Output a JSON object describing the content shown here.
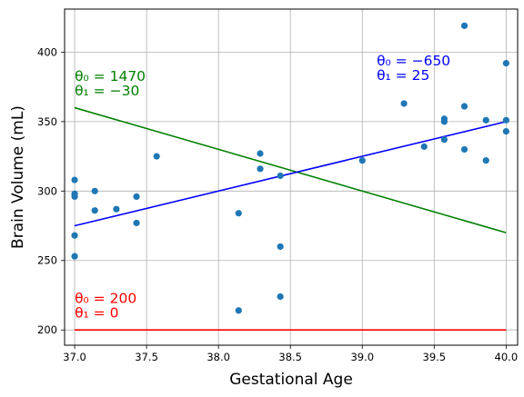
{
  "chart_data": {
    "type": "scatter",
    "xlabel": "Gestational Age",
    "ylabel": "Brain Volume (mL)",
    "xlim": [
      36.93,
      40.08
    ],
    "ylim": [
      189,
      431
    ],
    "xticks": [
      "37.0",
      "37.5",
      "38.0",
      "38.5",
      "39.0",
      "39.5",
      "40.0"
    ],
    "xtick_values": [
      37.0,
      37.5,
      38.0,
      38.5,
      39.0,
      39.5,
      40.0
    ],
    "yticks": [
      "200",
      "250",
      "300",
      "350",
      "400"
    ],
    "ytick_values": [
      200,
      250,
      300,
      350,
      400
    ],
    "grid": true,
    "point_color": "#1f77b4",
    "points": [
      {
        "x": 37.0,
        "y": 308
      },
      {
        "x": 37.0,
        "y": 298
      },
      {
        "x": 37.0,
        "y": 296
      },
      {
        "x": 37.0,
        "y": 268
      },
      {
        "x": 37.0,
        "y": 253
      },
      {
        "x": 37.14,
        "y": 300
      },
      {
        "x": 37.14,
        "y": 286
      },
      {
        "x": 37.29,
        "y": 287
      },
      {
        "x": 37.43,
        "y": 296
      },
      {
        "x": 37.43,
        "y": 277
      },
      {
        "x": 37.57,
        "y": 325
      },
      {
        "x": 38.14,
        "y": 284
      },
      {
        "x": 38.14,
        "y": 214
      },
      {
        "x": 38.29,
        "y": 327
      },
      {
        "x": 38.29,
        "y": 316
      },
      {
        "x": 38.43,
        "y": 311
      },
      {
        "x": 38.43,
        "y": 260
      },
      {
        "x": 38.43,
        "y": 224
      },
      {
        "x": 39.0,
        "y": 322
      },
      {
        "x": 39.29,
        "y": 363
      },
      {
        "x": 39.43,
        "y": 332
      },
      {
        "x": 39.57,
        "y": 352
      },
      {
        "x": 39.57,
        "y": 350
      },
      {
        "x": 39.57,
        "y": 337
      },
      {
        "x": 39.71,
        "y": 419
      },
      {
        "x": 39.71,
        "y": 361
      },
      {
        "x": 39.71,
        "y": 330
      },
      {
        "x": 39.86,
        "y": 351
      },
      {
        "x": 39.86,
        "y": 322
      },
      {
        "x": 40.0,
        "y": 392
      },
      {
        "x": 40.0,
        "y": 351
      },
      {
        "x": 40.0,
        "y": 343
      }
    ],
    "lines": [
      {
        "color": "#ff0000",
        "x": [
          37.0,
          40.0
        ],
        "y": [
          200,
          200
        ],
        "label1": "θ₀ = 200",
        "label2": "θ₁ = 0",
        "label_x": 37.0,
        "label_y": 209
      },
      {
        "color": "#008000",
        "x": [
          37.0,
          40.0
        ],
        "y": [
          360,
          270
        ],
        "label1": "θ₀ = 1470",
        "label2": "θ₁ = −30",
        "label_x": 37.0,
        "label_y": 369
      },
      {
        "color": "#0000ff",
        "x": [
          37.0,
          40.0
        ],
        "y": [
          275,
          350
        ],
        "label1": "θ₀ = −650",
        "label2": "θ₁ = 25",
        "label_x": 39.1,
        "label_y": 380
      }
    ]
  }
}
